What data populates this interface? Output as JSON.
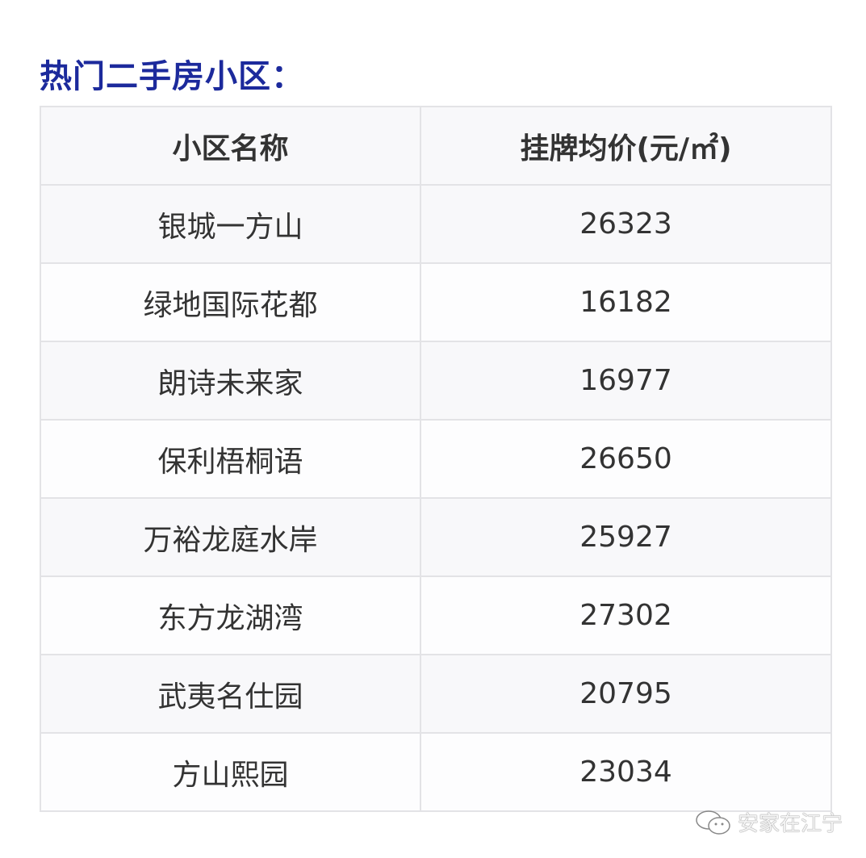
{
  "title": "热门二手房小区：",
  "table": {
    "headers": [
      "小区名称",
      "挂牌均价(元/㎡)"
    ],
    "rows": [
      {
        "name": "银城一方山",
        "price": "26323"
      },
      {
        "name": "绿地国际花都",
        "price": "16182"
      },
      {
        "name": "朗诗未来家",
        "price": "16977"
      },
      {
        "name": "保利梧桐语",
        "price": "26650"
      },
      {
        "name": "万裕龙庭水岸",
        "price": "25927"
      },
      {
        "name": "东方龙湖湾",
        "price": "27302"
      },
      {
        "name": "武夷名仕园",
        "price": "20795"
      },
      {
        "name": "方山熙园",
        "price": "23034"
      }
    ]
  },
  "watermark": {
    "icon": "wechat-icon",
    "text": "安家在江宁"
  },
  "colors": {
    "title": "#1c2a9c",
    "border": "#e3e3e6",
    "text": "#333333"
  }
}
